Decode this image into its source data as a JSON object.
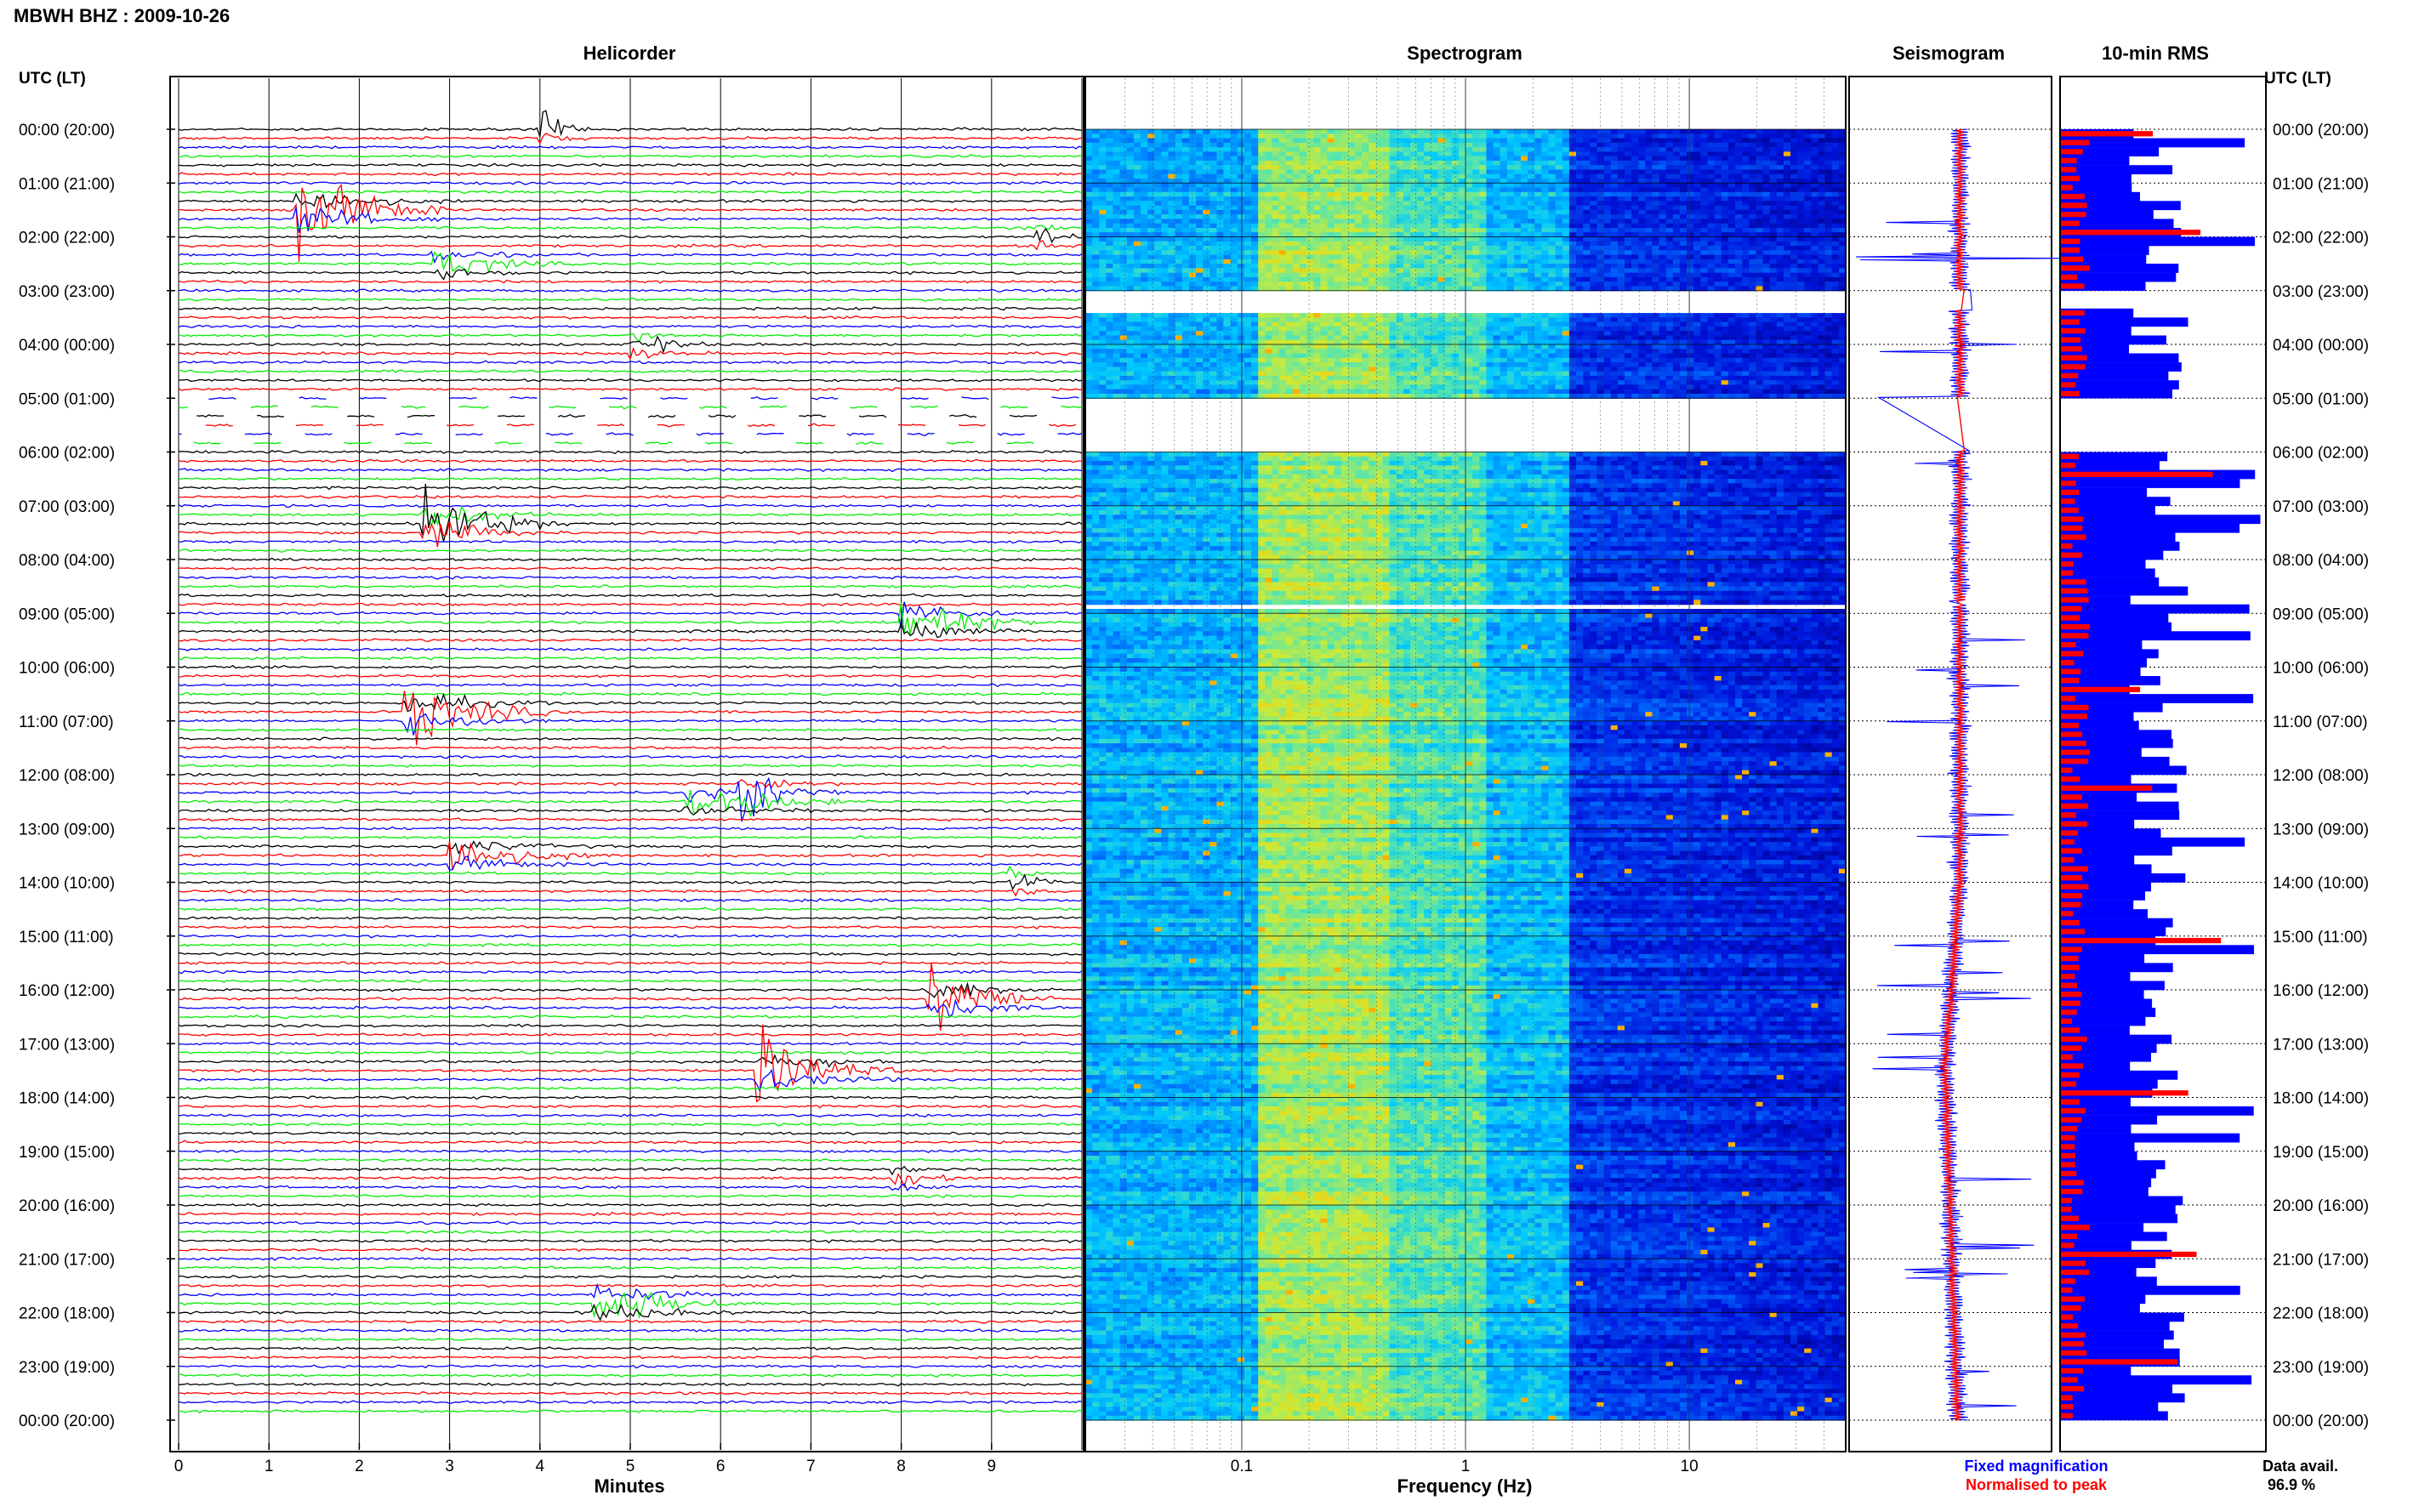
{
  "header": {
    "title": "MBWH BHZ : 2009-10-26",
    "utc_left": "UTC (LT)",
    "utc_right": "UTC (LT)"
  },
  "panels": {
    "helicorder": "Helicorder",
    "spectrogram": "Spectrogram",
    "seismogram": "Seismogram",
    "rms": "10-min RMS"
  },
  "time_labels": [
    "00:00 (20:00)",
    "01:00 (21:00)",
    "02:00 (22:00)",
    "03:00 (23:00)",
    "04:00 (00:00)",
    "05:00 (01:00)",
    "06:00 (02:00)",
    "07:00 (03:00)",
    "08:00 (04:00)",
    "09:00 (05:00)",
    "10:00 (06:00)",
    "11:00 (07:00)",
    "12:00 (08:00)",
    "13:00 (09:00)",
    "14:00 (10:00)",
    "15:00 (11:00)",
    "16:00 (12:00)",
    "17:00 (13:00)",
    "18:00 (14:00)",
    "19:00 (15:00)",
    "20:00 (16:00)",
    "21:00 (17:00)",
    "22:00 (18:00)",
    "23:00 (19:00)",
    "00:00 (20:00)"
  ],
  "legend": {
    "fixed": "Fixed magnification",
    "normalised": "Normalised to peak",
    "fixed_color": "#0000ff",
    "normalised_color": "#ff0000"
  },
  "data_avail": {
    "label": "Data avail.",
    "value": "96.9 %"
  },
  "chart_data": [
    {
      "type": "line",
      "name": "helicorder",
      "title": "Helicorder",
      "xlabel": "Minutes",
      "xlim": [
        0,
        10
      ],
      "x_ticks": [
        "0",
        "1",
        "2",
        "3",
        "4",
        "5",
        "6",
        "7",
        "8",
        "9"
      ],
      "rows": 144,
      "row_colors": [
        "#000000",
        "#ff0000",
        "#0000ff",
        "#00ee00"
      ],
      "gaps": [
        {
          "start_hour": 5.0,
          "end_hour": 6.0,
          "note": "partial data"
        }
      ],
      "events": [
        {
          "hour_row": 0.0,
          "minute": 4.0,
          "amp": 1.6,
          "len": 0.6
        },
        {
          "hour_row": 1.5,
          "minute": 1.3,
          "amp": 3.5,
          "len": 1.8
        },
        {
          "hour_row": 2.5,
          "minute": 2.8,
          "amp": 1.4,
          "len": 1.5
        },
        {
          "hour_row": 2.0,
          "minute": 9.5,
          "amp": 1.2,
          "len": 0.5
        },
        {
          "hour_row": 4.0,
          "minute": 5.0,
          "amp": 1.1,
          "len": 1.0
        },
        {
          "hour_row": 7.3,
          "minute": 2.7,
          "amp": 3.5,
          "len": 1.6
        },
        {
          "hour_row": 9.2,
          "minute": 8.0,
          "amp": 3.0,
          "len": 1.5
        },
        {
          "hour_row": 10.8,
          "minute": 2.5,
          "amp": 2.8,
          "len": 1.8
        },
        {
          "hour_row": 12.5,
          "minute": 5.6,
          "amp": 1.6,
          "len": 1.8
        },
        {
          "hour_row": 12.3,
          "minute": 6.2,
          "amp": 2.2,
          "len": 1.2
        },
        {
          "hour_row": 13.5,
          "minute": 3.0,
          "amp": 1.7,
          "len": 1.8
        },
        {
          "hour_row": 14.0,
          "minute": 9.2,
          "amp": 1.3,
          "len": 0.6
        },
        {
          "hour_row": 16.2,
          "minute": 8.3,
          "amp": 3.0,
          "len": 1.5
        },
        {
          "hour_row": 17.5,
          "minute": 6.4,
          "amp": 3.0,
          "len": 1.6
        },
        {
          "hour_row": 19.5,
          "minute": 7.9,
          "amp": 1.0,
          "len": 1.0
        },
        {
          "hour_row": 21.8,
          "minute": 4.6,
          "amp": 2.2,
          "len": 1.8
        }
      ]
    },
    {
      "type": "heatmap",
      "name": "spectrogram",
      "title": "Spectrogram",
      "xlabel": "Frequency (Hz)",
      "xscale": "log",
      "xlim": [
        0.02,
        50
      ],
      "x_ticks": [
        0.1,
        1,
        10
      ],
      "x_tick_labels": [
        "0.1",
        "1",
        "10"
      ],
      "ylim_hours": [
        0,
        24
      ],
      "gaps_hours": [
        [
          3.0,
          3.35
        ],
        [
          5.0,
          5.95
        ],
        [
          8.8,
          8.85
        ]
      ],
      "colormap": "jet"
    },
    {
      "type": "line",
      "name": "seismogram",
      "title": "Seismogram",
      "ylim_hours": [
        0,
        24
      ]
    },
    {
      "type": "bar",
      "name": "10-min RMS",
      "title": "10-min RMS",
      "orientation": "horizontal",
      "bins": 144,
      "series": [
        {
          "name": "Fixed magnification",
          "color": "#0000ff"
        },
        {
          "name": "Normalised to peak",
          "color": "#ff0000"
        }
      ],
      "gaps_hours": [
        [
          3.0,
          3.35
        ],
        [
          5.0,
          5.95
        ],
        [
          8.8,
          8.85
        ]
      ]
    }
  ]
}
